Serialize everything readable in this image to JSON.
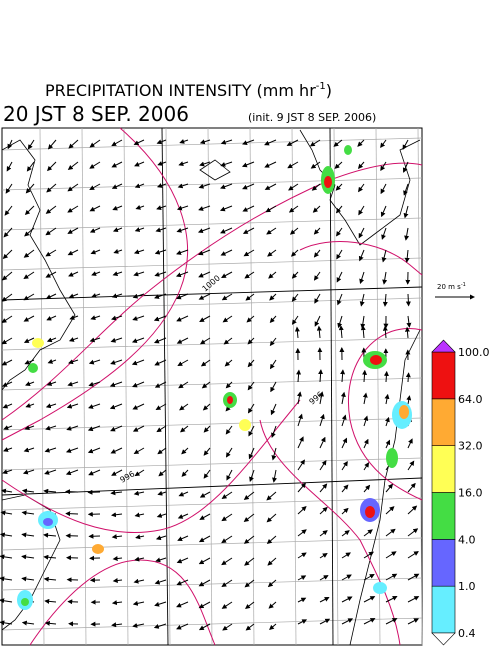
{
  "header": {
    "title": "PRECIPITATION INTENSITY (mm hr",
    "title_sup": "-1",
    "title_end": ")",
    "valid_time": "20 JST 8 SEP. 2006",
    "init_time": "(init. 9 JST 8 SEP. 2006)"
  },
  "wind_scale": {
    "label": "20 m s",
    "label_sup": "-1"
  },
  "colorbar": {
    "levels": [
      {
        "value": 0.4,
        "label": "0.4"
      },
      {
        "value": 1,
        "label": "1.0"
      },
      {
        "value": 4,
        "label": "4.0"
      },
      {
        "value": 16,
        "label": "16.0"
      },
      {
        "value": 32,
        "label": "32.0"
      },
      {
        "value": 64,
        "label": "64.0"
      },
      {
        "value": 100,
        "label": "100.0"
      }
    ],
    "colors": [
      "#66eeff",
      "#6666ff",
      "#44dd44",
      "#ffff55",
      "#ffaa33",
      "#ee1111"
    ],
    "over_color": "#bb33ff",
    "under_color": "#ffffff"
  },
  "isobar_labels": [
    "1000",
    "996",
    "996"
  ]
}
